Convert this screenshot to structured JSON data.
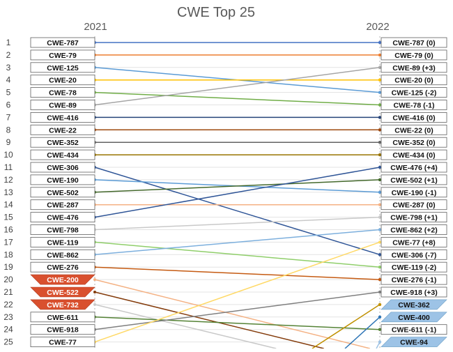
{
  "chart_data": {
    "type": "slope",
    "title": "CWE Top 25",
    "left_year": "2021",
    "right_year": "2022",
    "ranks": [
      "1",
      "2",
      "3",
      "4",
      "5",
      "6",
      "7",
      "8",
      "9",
      "10",
      "11",
      "12",
      "13",
      "14",
      "15",
      "16",
      "17",
      "18",
      "19",
      "20",
      "21",
      "22",
      "23",
      "24",
      "25"
    ],
    "left": [
      {
        "label": "CWE-787",
        "rank": 1,
        "to": 1,
        "color": "#4472c4"
      },
      {
        "label": "CWE-79",
        "rank": 2,
        "to": 2,
        "color": "#ed7d31"
      },
      {
        "label": "CWE-125",
        "rank": 3,
        "to": 5,
        "color": "#5b9bd5"
      },
      {
        "label": "CWE-20",
        "rank": 4,
        "to": 4,
        "color": "#ffc000"
      },
      {
        "label": "CWE-78",
        "rank": 5,
        "to": 6,
        "color": "#70ad47"
      },
      {
        "label": "CWE-89",
        "rank": 6,
        "to": 3,
        "color": "#a5a5a5"
      },
      {
        "label": "CWE-416",
        "rank": 7,
        "to": 7,
        "color": "#264478"
      },
      {
        "label": "CWE-22",
        "rank": 8,
        "to": 8,
        "color": "#9e480e"
      },
      {
        "label": "CWE-352",
        "rank": 9,
        "to": 9,
        "color": "#636363"
      },
      {
        "label": "CWE-434",
        "rank": 10,
        "to": 10,
        "color": "#997300"
      },
      {
        "label": "CWE-306",
        "rank": 11,
        "to": 18,
        "color": "#2f5597"
      },
      {
        "label": "CWE-190",
        "rank": 12,
        "to": 13,
        "color": "#5b9bd5"
      },
      {
        "label": "CWE-502",
        "rank": 13,
        "to": 12,
        "color": "#43682b"
      },
      {
        "label": "CWE-287",
        "rank": 14,
        "to": 14,
        "color": "#f4b183"
      },
      {
        "label": "CWE-476",
        "rank": 15,
        "to": 11,
        "color": "#2f5597"
      },
      {
        "label": "CWE-798",
        "rank": 16,
        "to": 15,
        "color": "#c9c9c9"
      },
      {
        "label": "CWE-119",
        "rank": 17,
        "to": 19,
        "color": "#8fce6a"
      },
      {
        "label": "CWE-862",
        "rank": 18,
        "to": 16,
        "color": "#7cafdd"
      },
      {
        "label": "CWE-276",
        "rank": 19,
        "to": 20,
        "color": "#c55a11"
      },
      {
        "label": "CWE-200",
        "rank": 20,
        "to": null,
        "color": "#f4b183",
        "dropped": true
      },
      {
        "label": "CWE-522",
        "rank": 21,
        "to": null,
        "color": "#843c0c",
        "dropped": true
      },
      {
        "label": "CWE-732",
        "rank": 22,
        "to": null,
        "color": "#c9c9c9",
        "dropped": true
      },
      {
        "label": "CWE-611",
        "rank": 23,
        "to": 24,
        "color": "#548235"
      },
      {
        "label": "CWE-918",
        "rank": 24,
        "to": 21,
        "color": "#7f7f7f"
      },
      {
        "label": "CWE-77",
        "rank": 25,
        "to": 17,
        "color": "#ffd966"
      }
    ],
    "right": [
      {
        "label": "CWE-787 (0)",
        "rank": 1
      },
      {
        "label": "CWE-79 (0)",
        "rank": 2
      },
      {
        "label": "CWE-89 (+3)",
        "rank": 3
      },
      {
        "label": "CWE-20 (0)",
        "rank": 4
      },
      {
        "label": "CWE-125 (-2)",
        "rank": 5
      },
      {
        "label": "CWE-78 (-1)",
        "rank": 6
      },
      {
        "label": "CWE-416 (0)",
        "rank": 7
      },
      {
        "label": "CWE-22 (0)",
        "rank": 8
      },
      {
        "label": "CWE-352 (0)",
        "rank": 9
      },
      {
        "label": "CWE-434 (0)",
        "rank": 10
      },
      {
        "label": "CWE-476 (+4)",
        "rank": 11
      },
      {
        "label": "CWE-502 (+1)",
        "rank": 12
      },
      {
        "label": "CWE-190 (-1)",
        "rank": 13
      },
      {
        "label": "CWE-287 (0)",
        "rank": 14
      },
      {
        "label": "CWE-798 (+1)",
        "rank": 15
      },
      {
        "label": "CWE-862 (+2)",
        "rank": 16
      },
      {
        "label": "CWE-77 (+8)",
        "rank": 17
      },
      {
        "label": "CWE-306 (-7)",
        "rank": 18
      },
      {
        "label": "CWE-119 (-2)",
        "rank": 19
      },
      {
        "label": "CWE-276 (-1)",
        "rank": 20
      },
      {
        "label": "CWE-918 (+3)",
        "rank": 21
      },
      {
        "label": "CWE-362",
        "rank": 22,
        "new": true
      },
      {
        "label": "CWE-400",
        "rank": 23,
        "new": true
      },
      {
        "label": "CWE-611 (-1)",
        "rank": 24
      },
      {
        "label": "CWE-94",
        "rank": 25,
        "new": true
      }
    ],
    "incoming": [
      {
        "rank": 22,
        "color": "#bf9000"
      },
      {
        "rank": 23,
        "color": "#2e75b6"
      },
      {
        "rank": 25,
        "color": "#9dc3e6"
      }
    ],
    "dropped_color": "#d9502e",
    "new_color": "#9dc3e6",
    "grid": true
  }
}
